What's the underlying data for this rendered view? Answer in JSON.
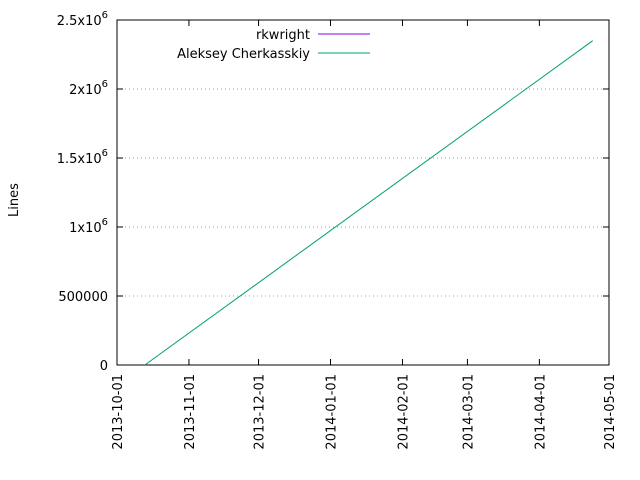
{
  "chart_data": {
    "type": "line",
    "title": "",
    "ylabel": "Lines",
    "xlabel": "",
    "x_type": "date",
    "x_range": [
      "2013-10-01",
      "2014-05-01"
    ],
    "ylim": [
      0,
      2500000
    ],
    "grid": "horizontal dotted",
    "legend_position": "top-center",
    "x_ticks": [
      "2013-10-01",
      "2013-11-01",
      "2013-12-01",
      "2014-01-01",
      "2014-02-01",
      "2014-03-01",
      "2014-04-01",
      "2014-05-01"
    ],
    "y_ticks": [
      {
        "value": 0,
        "base": "0",
        "sup": ""
      },
      {
        "value": 500000,
        "base": "500000",
        "sup": ""
      },
      {
        "value": 1000000,
        "base": "1x10",
        "sup": "6"
      },
      {
        "value": 1500000,
        "base": "1.5x10",
        "sup": "6"
      },
      {
        "value": 2000000,
        "base": "2x10",
        "sup": "6"
      },
      {
        "value": 2500000,
        "base": "2.5x10",
        "sup": "6"
      }
    ],
    "series": [
      {
        "name": "rkwright",
        "color": "#9400d3",
        "points": []
      },
      {
        "name": "Aleksey Cherkasskiy",
        "color": "#009e73",
        "points": [
          {
            "x": "2013-10-13",
            "y": 0
          },
          {
            "x": "2014-04-24",
            "y": 2350000
          }
        ]
      }
    ]
  }
}
